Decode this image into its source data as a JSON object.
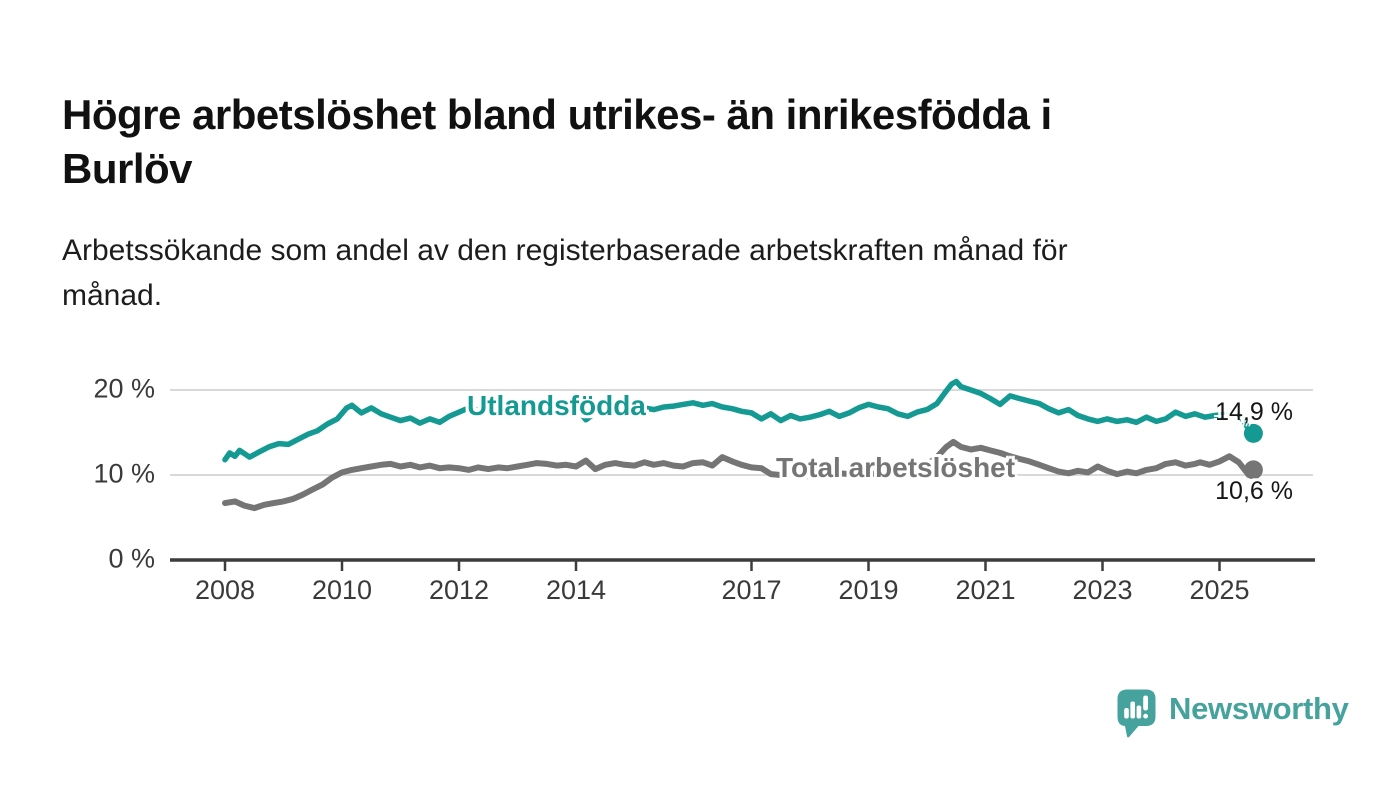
{
  "page": {
    "title_lines": [
      "Högre arbetslöshet bland utrikes- än inrikesfödda i",
      "Burlöv"
    ],
    "subtitle_lines": [
      "Arbetssökande som andel av den registerbaserade arbetskraften månad för",
      "månad."
    ],
    "background": "#ffffff"
  },
  "colors": {
    "accent_teal": "#149a93",
    "series_gray": "#757575",
    "gridline": "#d9d9d9",
    "axis": "#3c3c3c",
    "axis_text": "#3a3a3a",
    "value_text": "#161616",
    "logo_teal": "#45a29c"
  },
  "chart_data": {
    "type": "line",
    "title": "Högre arbetslöshet bland utrikes- än inrikesfödda i Burlöv",
    "subtitle": "Arbetssökande som andel av den registerbaserade arbetskraften månad för månad.",
    "x_unit": "year (monthly observations)",
    "y_unit": "percent",
    "xlim": [
      2007.1,
      2026.6
    ],
    "ylim": [
      0,
      22
    ],
    "grid": "horizontal gridlines at 10 and 20",
    "legend": "inline series labels on chart",
    "xticks": [
      2008,
      2010,
      2012,
      2014,
      2017,
      2019,
      2021,
      2023,
      2025
    ],
    "xtick_labels": [
      "2008",
      "2010",
      "2012",
      "2014",
      "2017",
      "2019",
      "2021",
      "2023",
      "2025"
    ],
    "yticks": [
      0,
      10,
      20
    ],
    "ytick_labels": [
      "0 %",
      "10 %",
      "20 %"
    ],
    "series": [
      {
        "name": "Utlandsfödda",
        "color": "#149a93",
        "end_value": 14.9,
        "end_label": "14,9 %",
        "points": [
          [
            2008.0,
            11.8
          ],
          [
            2008.08,
            12.6
          ],
          [
            2008.17,
            12.2
          ],
          [
            2008.25,
            12.9
          ],
          [
            2008.42,
            12.1
          ],
          [
            2008.58,
            12.7
          ],
          [
            2008.75,
            13.3
          ],
          [
            2008.92,
            13.7
          ],
          [
            2009.08,
            13.6
          ],
          [
            2009.25,
            14.2
          ],
          [
            2009.42,
            14.8
          ],
          [
            2009.58,
            15.2
          ],
          [
            2009.75,
            16.0
          ],
          [
            2009.92,
            16.6
          ],
          [
            2010.08,
            17.9
          ],
          [
            2010.17,
            18.2
          ],
          [
            2010.33,
            17.3
          ],
          [
            2010.5,
            17.9
          ],
          [
            2010.67,
            17.2
          ],
          [
            2010.83,
            16.8
          ],
          [
            2011.0,
            16.4
          ],
          [
            2011.17,
            16.7
          ],
          [
            2011.33,
            16.1
          ],
          [
            2011.5,
            16.6
          ],
          [
            2011.67,
            16.2
          ],
          [
            2011.83,
            16.9
          ],
          [
            2012.0,
            17.4
          ],
          [
            2012.17,
            17.9
          ],
          [
            2012.33,
            17.6
          ],
          [
            2012.5,
            18.2
          ],
          [
            2012.67,
            17.9
          ],
          [
            2012.83,
            18.3
          ],
          [
            2013.0,
            18.6
          ],
          [
            2013.17,
            18.2
          ],
          [
            2013.33,
            17.7
          ],
          [
            2013.5,
            18.2
          ],
          [
            2013.67,
            17.9
          ],
          [
            2013.83,
            17.7
          ],
          [
            2014.0,
            18.0
          ],
          [
            2014.17,
            16.5
          ],
          [
            2014.33,
            17.3
          ],
          [
            2014.5,
            17.6
          ],
          [
            2014.67,
            17.4
          ],
          [
            2014.83,
            17.7
          ],
          [
            2015.0,
            17.6
          ],
          [
            2015.17,
            17.9
          ],
          [
            2015.33,
            17.7
          ],
          [
            2015.5,
            18.0
          ],
          [
            2015.67,
            18.1
          ],
          [
            2015.83,
            18.3
          ],
          [
            2016.0,
            18.5
          ],
          [
            2016.17,
            18.2
          ],
          [
            2016.33,
            18.4
          ],
          [
            2016.5,
            18.0
          ],
          [
            2016.67,
            17.8
          ],
          [
            2016.83,
            17.5
          ],
          [
            2017.0,
            17.3
          ],
          [
            2017.17,
            16.6
          ],
          [
            2017.33,
            17.2
          ],
          [
            2017.5,
            16.4
          ],
          [
            2017.67,
            17.0
          ],
          [
            2017.83,
            16.6
          ],
          [
            2018.0,
            16.8
          ],
          [
            2018.17,
            17.1
          ],
          [
            2018.33,
            17.5
          ],
          [
            2018.5,
            16.9
          ],
          [
            2018.67,
            17.3
          ],
          [
            2018.83,
            17.9
          ],
          [
            2019.0,
            18.3
          ],
          [
            2019.17,
            18.0
          ],
          [
            2019.33,
            17.8
          ],
          [
            2019.5,
            17.2
          ],
          [
            2019.67,
            16.9
          ],
          [
            2019.83,
            17.4
          ],
          [
            2020.0,
            17.7
          ],
          [
            2020.17,
            18.4
          ],
          [
            2020.33,
            19.9
          ],
          [
            2020.42,
            20.7
          ],
          [
            2020.5,
            21.0
          ],
          [
            2020.58,
            20.4
          ],
          [
            2020.75,
            20.0
          ],
          [
            2020.92,
            19.6
          ],
          [
            2021.08,
            19.0
          ],
          [
            2021.25,
            18.3
          ],
          [
            2021.42,
            19.3
          ],
          [
            2021.58,
            19.0
          ],
          [
            2021.75,
            18.7
          ],
          [
            2021.92,
            18.4
          ],
          [
            2022.08,
            17.8
          ],
          [
            2022.25,
            17.3
          ],
          [
            2022.42,
            17.7
          ],
          [
            2022.58,
            17.0
          ],
          [
            2022.75,
            16.6
          ],
          [
            2022.92,
            16.3
          ],
          [
            2023.08,
            16.6
          ],
          [
            2023.25,
            16.3
          ],
          [
            2023.42,
            16.5
          ],
          [
            2023.58,
            16.2
          ],
          [
            2023.75,
            16.8
          ],
          [
            2023.92,
            16.3
          ],
          [
            2024.08,
            16.6
          ],
          [
            2024.25,
            17.4
          ],
          [
            2024.42,
            16.9
          ],
          [
            2024.58,
            17.2
          ],
          [
            2024.75,
            16.8
          ],
          [
            2024.92,
            17.0
          ],
          [
            2025.08,
            17.1
          ],
          [
            2025.25,
            17.5
          ],
          [
            2025.42,
            16.3
          ],
          [
            2025.5,
            15.3
          ],
          [
            2025.58,
            14.9
          ]
        ]
      },
      {
        "name": "Total arbetslöshet",
        "color": "#757575",
        "end_value": 10.6,
        "end_label": "10,6 %",
        "points": [
          [
            2008.0,
            6.7
          ],
          [
            2008.17,
            6.9
          ],
          [
            2008.33,
            6.4
          ],
          [
            2008.5,
            6.1
          ],
          [
            2008.67,
            6.5
          ],
          [
            2008.83,
            6.7
          ],
          [
            2009.0,
            6.9
          ],
          [
            2009.17,
            7.2
          ],
          [
            2009.33,
            7.7
          ],
          [
            2009.5,
            8.3
          ],
          [
            2009.67,
            8.9
          ],
          [
            2009.83,
            9.7
          ],
          [
            2010.0,
            10.3
          ],
          [
            2010.17,
            10.6
          ],
          [
            2010.33,
            10.8
          ],
          [
            2010.5,
            11.0
          ],
          [
            2010.67,
            11.2
          ],
          [
            2010.83,
            11.3
          ],
          [
            2011.0,
            11.0
          ],
          [
            2011.17,
            11.2
          ],
          [
            2011.33,
            10.9
          ],
          [
            2011.5,
            11.1
          ],
          [
            2011.67,
            10.8
          ],
          [
            2011.83,
            10.9
          ],
          [
            2012.0,
            10.8
          ],
          [
            2012.17,
            10.6
          ],
          [
            2012.33,
            10.9
          ],
          [
            2012.5,
            10.7
          ],
          [
            2012.67,
            10.9
          ],
          [
            2012.83,
            10.8
          ],
          [
            2013.0,
            11.0
          ],
          [
            2013.17,
            11.2
          ],
          [
            2013.33,
            11.4
          ],
          [
            2013.5,
            11.3
          ],
          [
            2013.67,
            11.1
          ],
          [
            2013.83,
            11.2
          ],
          [
            2014.0,
            11.0
          ],
          [
            2014.17,
            11.7
          ],
          [
            2014.33,
            10.7
          ],
          [
            2014.5,
            11.2
          ],
          [
            2014.67,
            11.4
          ],
          [
            2014.83,
            11.2
          ],
          [
            2015.0,
            11.1
          ],
          [
            2015.17,
            11.5
          ],
          [
            2015.33,
            11.2
          ],
          [
            2015.5,
            11.4
          ],
          [
            2015.67,
            11.1
          ],
          [
            2015.83,
            11.0
          ],
          [
            2016.0,
            11.4
          ],
          [
            2016.17,
            11.5
          ],
          [
            2016.33,
            11.1
          ],
          [
            2016.5,
            12.1
          ],
          [
            2016.67,
            11.6
          ],
          [
            2016.83,
            11.2
          ],
          [
            2017.0,
            10.9
          ],
          [
            2017.17,
            10.8
          ],
          [
            2017.33,
            10.1
          ],
          [
            2017.5,
            10.0
          ],
          [
            2017.67,
            10.2
          ],
          [
            2017.83,
            9.8
          ],
          [
            2018.0,
            9.9
          ],
          [
            2018.17,
            10.1
          ],
          [
            2018.33,
            10.0
          ],
          [
            2018.5,
            10.2
          ],
          [
            2018.67,
            10.1
          ],
          [
            2018.83,
            10.0
          ],
          [
            2019.0,
            10.1
          ],
          [
            2019.17,
            10.2
          ],
          [
            2019.33,
            10.3
          ],
          [
            2019.5,
            10.2
          ],
          [
            2019.67,
            10.5
          ],
          [
            2019.83,
            10.8
          ],
          [
            2020.0,
            11.2
          ],
          [
            2020.17,
            12.1
          ],
          [
            2020.33,
            13.3
          ],
          [
            2020.45,
            13.9
          ],
          [
            2020.58,
            13.3
          ],
          [
            2020.75,
            13.0
          ],
          [
            2020.92,
            13.2
          ],
          [
            2021.08,
            12.9
          ],
          [
            2021.25,
            12.6
          ],
          [
            2021.42,
            12.2
          ],
          [
            2021.58,
            11.9
          ],
          [
            2021.75,
            11.6
          ],
          [
            2021.92,
            11.2
          ],
          [
            2022.08,
            10.8
          ],
          [
            2022.25,
            10.4
          ],
          [
            2022.42,
            10.2
          ],
          [
            2022.58,
            10.5
          ],
          [
            2022.75,
            10.3
          ],
          [
            2022.92,
            11.0
          ],
          [
            2023.08,
            10.5
          ],
          [
            2023.25,
            10.1
          ],
          [
            2023.42,
            10.4
          ],
          [
            2023.58,
            10.2
          ],
          [
            2023.75,
            10.6
          ],
          [
            2023.92,
            10.8
          ],
          [
            2024.08,
            11.3
          ],
          [
            2024.25,
            11.5
          ],
          [
            2024.42,
            11.1
          ],
          [
            2024.58,
            11.3
          ],
          [
            2024.67,
            11.5
          ],
          [
            2024.83,
            11.2
          ],
          [
            2025.0,
            11.6
          ],
          [
            2025.17,
            12.2
          ],
          [
            2025.33,
            11.5
          ],
          [
            2025.5,
            10.0
          ],
          [
            2025.58,
            10.6
          ]
        ]
      }
    ]
  },
  "branding": {
    "logo_text": "Newsworthy",
    "logo_mark": "speech-bubble-with-bar-chart-and-exclamation"
  }
}
